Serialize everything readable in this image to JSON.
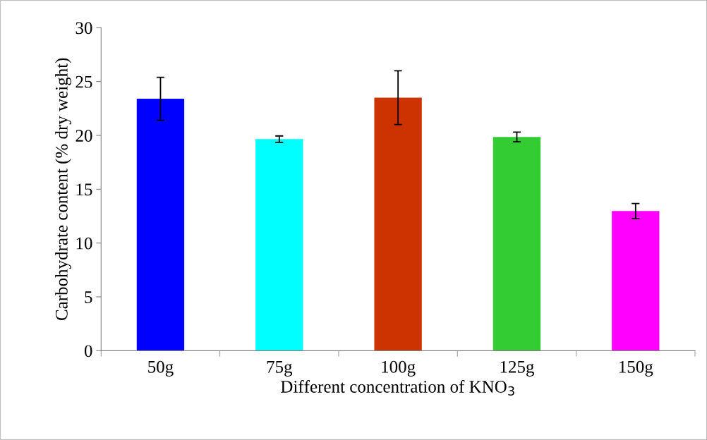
{
  "chart_data": {
    "type": "bar",
    "xlabel": "Different concentration of KNO$_{3}$",
    "ylabel": "Carbohydrate content (% dry weight)",
    "categories": [
      "50g",
      "75g",
      "100g",
      "125g",
      "150g"
    ],
    "values": [
      23.4,
      19.65,
      23.5,
      19.85,
      12.97
    ],
    "errors": [
      2.0,
      0.3,
      2.5,
      0.45,
      0.7
    ],
    "colors": [
      "#0000ff",
      "#00ffff",
      "#cc3300",
      "#33cc33",
      "#ff00ff"
    ],
    "ylim": [
      0,
      30
    ],
    "yticks": [
      0,
      5,
      10,
      15,
      20,
      25,
      30
    ],
    "grid": false,
    "legend": false
  }
}
